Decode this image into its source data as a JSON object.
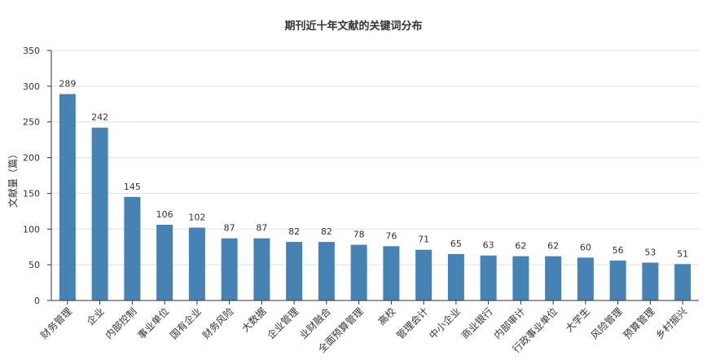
{
  "chart_data": {
    "type": "bar",
    "title": "期刊近十年文献的关键词分布",
    "xlabel": "",
    "ylabel": "文献量（篇）",
    "ylim": [
      0,
      350
    ],
    "yticks": [
      0,
      50,
      100,
      150,
      200,
      250,
      300,
      350
    ],
    "grid": true,
    "legend": "none",
    "bar_color": "#4682b4",
    "categories": [
      "财务管理",
      "企业",
      "内部控制",
      "事业单位",
      "国有企业",
      "财务风险",
      "大数据",
      "企业管理",
      "业财融合",
      "全面预算管理",
      "高校",
      "管理会计",
      "中小企业",
      "商业银行",
      "内部审计",
      "行政事业单位",
      "大学生",
      "风险管理",
      "预算管理",
      "乡村振兴"
    ],
    "values": [
      289,
      242,
      145,
      106,
      102,
      87,
      87,
      82,
      82,
      78,
      76,
      71,
      65,
      63,
      62,
      62,
      60,
      56,
      53,
      51
    ]
  }
}
